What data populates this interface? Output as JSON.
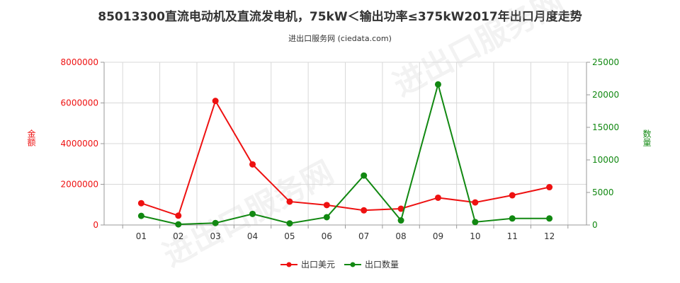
{
  "chart_data": {
    "type": "line",
    "title": "85013300直流电动机及直流发电机，75kW＜输出功率≤375kW2017年出口月度走势",
    "subtitle": "进出口服务网 (ciedata.com)",
    "categories": [
      "01",
      "02",
      "03",
      "04",
      "05",
      "06",
      "07",
      "08",
      "09",
      "10",
      "11",
      "12"
    ],
    "y_left": {
      "label": "金额",
      "ylim": [
        0,
        8000000
      ],
      "ticks": [
        "0",
        "2000000",
        "4000000",
        "6000000",
        "8000000"
      ]
    },
    "y_right": {
      "label": "数量",
      "ylim": [
        0,
        25000
      ],
      "ticks": [
        "0",
        "5000",
        "10000",
        "15000",
        "20000",
        "25000"
      ]
    },
    "series": [
      {
        "name": "出口美元",
        "axis": "left",
        "color": "#ee1111",
        "values": [
          1070000,
          460000,
          6100000,
          2980000,
          1150000,
          980000,
          720000,
          800000,
          1340000,
          1110000,
          1460000,
          1860000
        ]
      },
      {
        "name": "出口数量",
        "axis": "right",
        "color": "#118811",
        "values": [
          1400,
          100,
          300,
          1700,
          250,
          1200,
          7600,
          700,
          21600,
          450,
          1000,
          1000
        ]
      }
    ],
    "grid": true,
    "legend_position": "bottom-center"
  }
}
